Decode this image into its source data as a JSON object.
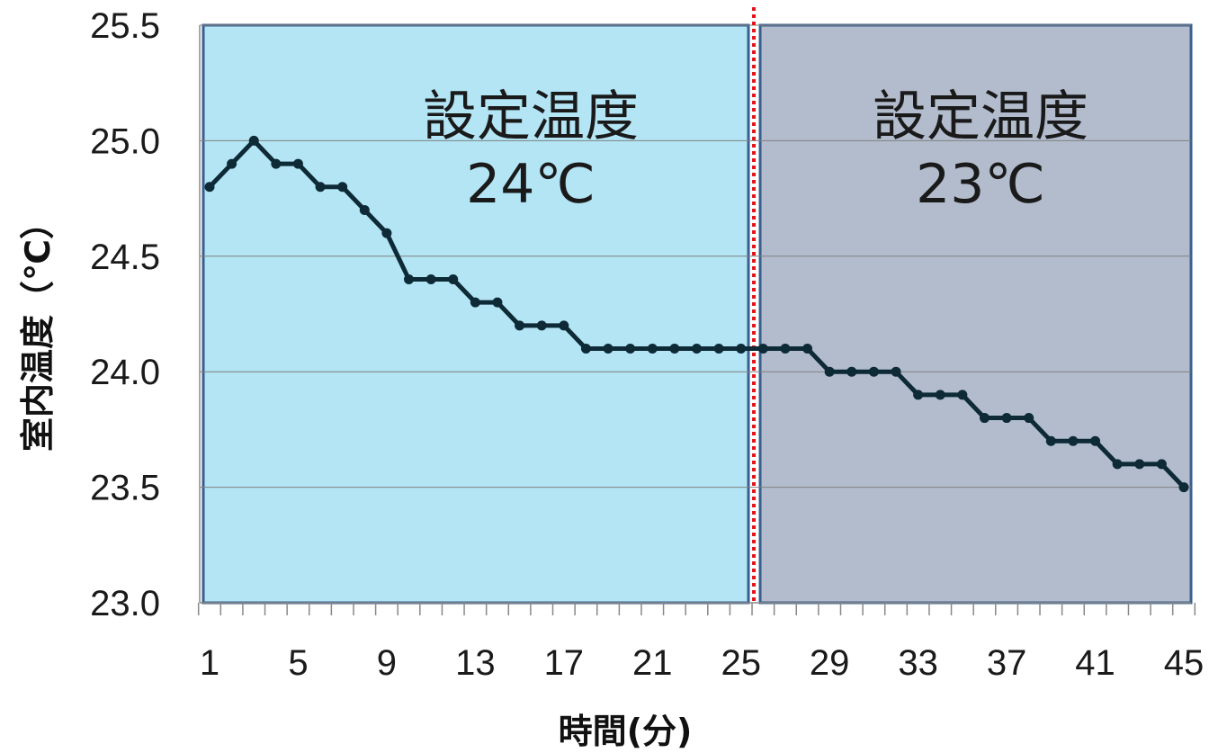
{
  "chart_data": {
    "type": "line",
    "title": "",
    "xlabel": "時間(分)",
    "ylabel": "室内温度（℃）",
    "x": [
      1,
      2,
      3,
      4,
      5,
      6,
      7,
      8,
      9,
      10,
      11,
      12,
      13,
      14,
      15,
      16,
      17,
      18,
      19,
      20,
      21,
      22,
      23,
      24,
      25,
      26,
      27,
      28,
      29,
      30,
      31,
      32,
      33,
      34,
      35,
      36,
      37,
      38,
      39,
      40,
      41,
      42,
      43,
      44,
      45
    ],
    "series": [
      {
        "name": "",
        "values": [
          24.8,
          24.9,
          25.0,
          24.9,
          24.9,
          24.8,
          24.8,
          24.7,
          24.6,
          24.4,
          24.4,
          24.4,
          24.3,
          24.3,
          24.2,
          24.2,
          24.2,
          24.1,
          24.1,
          24.1,
          24.1,
          24.1,
          24.1,
          24.1,
          24.1,
          24.1,
          24.1,
          24.1,
          24.0,
          24.0,
          24.0,
          24.0,
          23.9,
          23.9,
          23.9,
          23.8,
          23.8,
          23.8,
          23.7,
          23.7,
          23.7,
          23.6,
          23.6,
          23.6,
          23.5
        ]
      }
    ],
    "x_tick_labels": [
      "1",
      "5",
      "9",
      "13",
      "17",
      "21",
      "25",
      "29",
      "33",
      "37",
      "41",
      "45"
    ],
    "y_tick_labels": [
      "23.0",
      "23.5",
      "24.0",
      "24.5",
      "25.0",
      "25.5"
    ],
    "ylim": [
      23.0,
      25.5
    ],
    "xlim": [
      1,
      45
    ],
    "grid": true,
    "legend": "none",
    "regions": [
      {
        "from": 1,
        "to": 25.5,
        "label_line1": "設定温度",
        "label_line2": "24℃",
        "fill": "#b3e5f5"
      },
      {
        "from": 25.5,
        "to": 45,
        "label_line1": "設定温度",
        "label_line2": "23℃",
        "fill": "#b2bccd"
      }
    ],
    "divider_x": 25.5,
    "colors": {
      "line": "#0d2a36",
      "divider": "#e0151b",
      "region_border": "#3a5f8f",
      "grid": "#808080"
    }
  }
}
